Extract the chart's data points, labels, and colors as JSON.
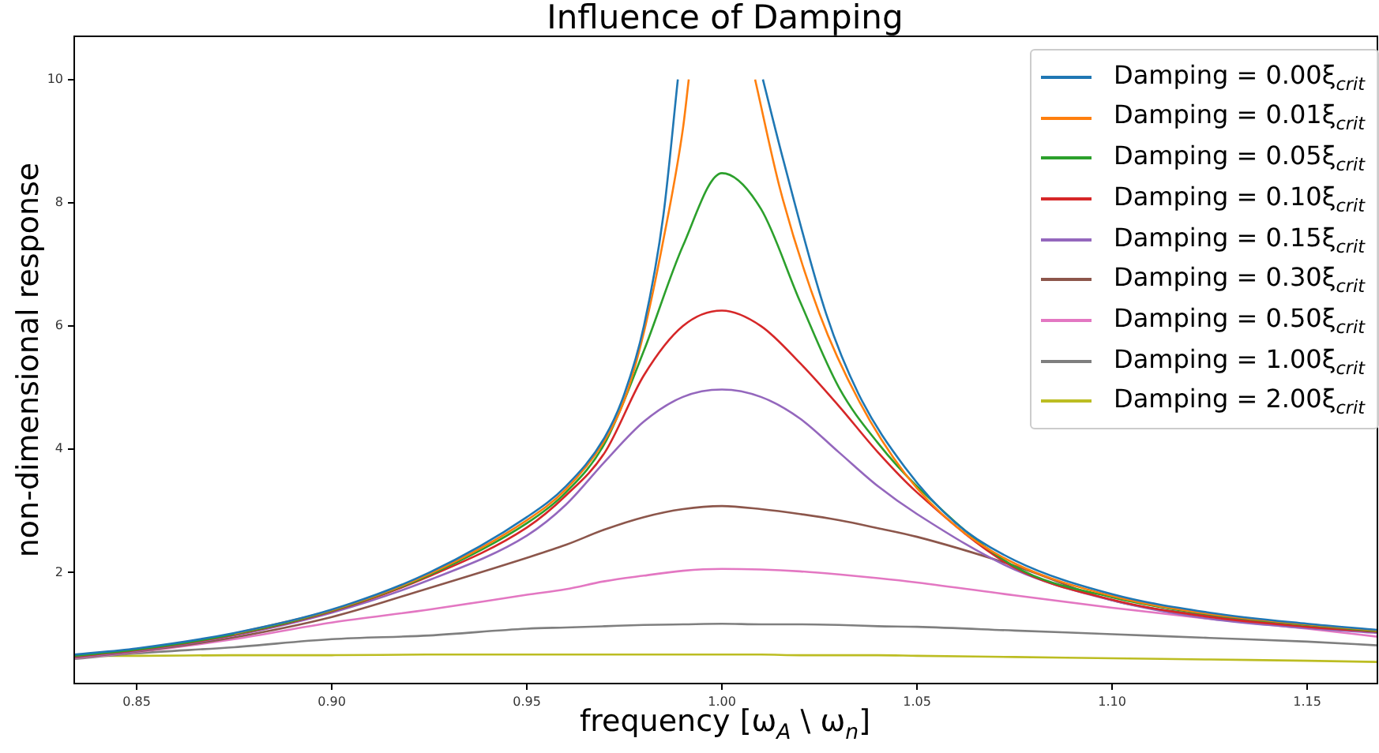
{
  "chart_data": {
    "type": "line",
    "title": "Influence of Damping",
    "xlabel": "frequency [ω$_{A}$ \\ ω$_{n}$]",
    "ylabel": "non-dimensional response",
    "x": [
      0.834,
      0.85,
      0.875,
      0.9,
      0.925,
      0.95,
      0.96,
      0.97,
      0.98,
      0.99,
      1.0,
      1.01,
      1.02,
      1.03,
      1.04,
      1.05,
      1.075,
      1.1,
      1.125,
      1.15,
      1.168
    ],
    "xlim": [
      0.834,
      1.168
    ],
    "ylim": [
      0.2,
      10.7
    ],
    "xticks": [
      0.85,
      {
        "value": 0.9,
        "label": "0.90"
      },
      0.95,
      {
        "value": 1.0,
        "label": "1.00"
      },
      1.05,
      {
        "value": 1.1,
        "label": "1.10"
      },
      1.15
    ],
    "yticks": [
      2,
      4,
      6,
      8,
      10
    ],
    "grid": false,
    "legend": "top right",
    "marker": "none",
    "line_style": "solid",
    "series": [
      {
        "name": "Damping = 0.00ξ$_{crit}$",
        "color": "#1f77b4",
        "x": [
          0.834,
          0.85,
          0.875,
          0.9,
          0.925,
          0.95,
          0.96,
          0.97,
          0.975,
          0.98,
          0.985,
          0.9887,
          1.0,
          1.0105,
          1.0157,
          1.0267,
          1.035,
          1.047,
          1.06,
          1.075,
          1.1,
          1.125,
          1.15,
          1.168
        ],
        "values": [
          0.67,
          0.77,
          1.02,
          1.4,
          2.0,
          2.9,
          3.4,
          4.2,
          4.9,
          6.0,
          7.8,
          10.0,
          null,
          10.0,
          8.7,
          6.2,
          4.9,
          3.7,
          2.8,
          2.2,
          1.65,
          1.35,
          1.17,
          1.07
        ]
      },
      {
        "name": "Damping = 0.01ξ$_{crit}$",
        "color": "#ff7f0e",
        "x": [
          0.875,
          0.9,
          0.925,
          0.95,
          0.96,
          0.97,
          0.975,
          0.98,
          0.985,
          0.99,
          0.9915,
          1.0,
          1.0085,
          1.015,
          1.025,
          1.035,
          1.047,
          1.06,
          1.075,
          1.1,
          1.125,
          1.15,
          1.168
        ],
        "values": [
          1.01,
          1.39,
          1.98,
          2.85,
          3.35,
          4.15,
          4.8,
          5.9,
          7.4,
          9.2,
          10.0,
          null,
          10.0,
          8.2,
          6.2,
          4.8,
          3.6,
          2.75,
          2.15,
          1.62,
          1.33,
          1.16,
          1.06
        ]
      },
      {
        "name": "Damping = 0.05ξ$_{crit}$",
        "color": "#2ca02c",
        "values": [
          0.65,
          0.75,
          1.0,
          1.38,
          1.96,
          2.8,
          3.3,
          4.1,
          5.6,
          7.3,
          8.48,
          7.9,
          6.4,
          5.0,
          4.1,
          3.4,
          2.1,
          1.6,
          1.32,
          1.15,
          1.05
        ]
      },
      {
        "name": "Damping = 0.10ξ$_{crit}$",
        "color": "#d62728",
        "values": [
          0.64,
          0.74,
          0.99,
          1.37,
          1.94,
          2.73,
          3.25,
          3.95,
          5.2,
          6.0,
          6.25,
          6.0,
          5.4,
          4.7,
          3.95,
          3.3,
          2.08,
          1.56,
          1.28,
          1.12,
          1.04
        ]
      },
      {
        "name": "Damping = 0.15ξ$_{crit}$",
        "color": "#9467bd",
        "values": [
          0.63,
          0.73,
          0.98,
          1.35,
          1.88,
          2.6,
          3.1,
          3.8,
          4.45,
          4.85,
          4.97,
          4.85,
          4.5,
          3.95,
          3.4,
          2.95,
          2.05,
          1.55,
          1.25,
          1.1,
          1.02
        ]
      },
      {
        "name": "Damping = 0.30ξ$_{crit}$",
        "color": "#8c564b",
        "values": [
          0.62,
          0.72,
          0.95,
          1.28,
          1.75,
          2.24,
          2.45,
          2.7,
          2.9,
          3.03,
          3.08,
          3.03,
          2.95,
          2.85,
          2.72,
          2.58,
          2.11,
          1.55,
          1.3,
          1.15,
          1.05
        ]
      },
      {
        "name": "Damping = 0.50ξ$_{crit}$",
        "color": "#e377c2",
        "values": [
          0.61,
          0.71,
          0.92,
          1.19,
          1.4,
          1.64,
          1.73,
          1.86,
          1.95,
          2.03,
          2.06,
          2.05,
          2.02,
          1.97,
          1.91,
          1.84,
          1.63,
          1.43,
          1.25,
          1.09,
          0.96
        ]
      },
      {
        "name": "Damping = 1.00ξ$_{crit}$",
        "color": "#7f7f7f",
        "values": [
          0.6,
          0.69,
          0.79,
          0.92,
          0.98,
          1.09,
          1.11,
          1.13,
          1.15,
          1.16,
          1.17,
          1.16,
          1.16,
          1.15,
          1.13,
          1.12,
          1.06,
          1.0,
          0.94,
          0.88,
          0.82
        ]
      },
      {
        "name": "Damping = 2.00ξ$_{crit}$",
        "color": "#bcbd22",
        "values": [
          0.65,
          0.65,
          0.66,
          0.66,
          0.67,
          0.67,
          0.67,
          0.67,
          0.67,
          0.67,
          0.67,
          0.67,
          0.66,
          0.66,
          0.66,
          0.65,
          0.63,
          0.61,
          0.59,
          0.57,
          0.55
        ]
      }
    ]
  }
}
